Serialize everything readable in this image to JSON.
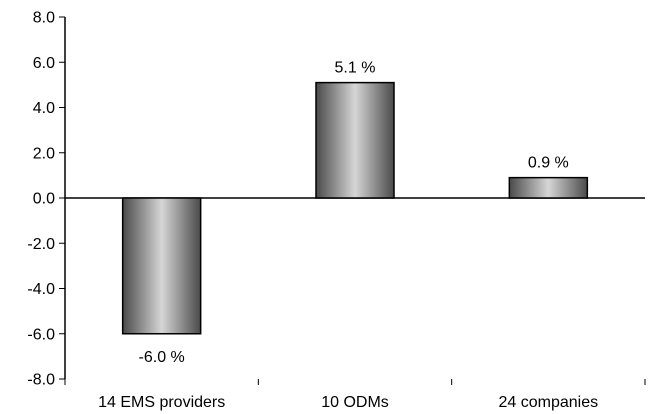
{
  "chart_data": {
    "type": "bar",
    "categories": [
      "14 EMS providers",
      "10 ODMs",
      "24 companies"
    ],
    "values": [
      -6.0,
      5.1,
      0.9
    ],
    "data_labels": [
      "-6.0 %",
      "5.1 %",
      "0.9 %"
    ],
    "title": "",
    "xlabel": "",
    "ylabel": "",
    "ylim": [
      -8.0,
      8.0
    ],
    "y_ticks": [
      8.0,
      6.0,
      4.0,
      2.0,
      0.0,
      -2.0,
      -4.0,
      -6.0,
      -8.0
    ],
    "y_tick_labels": [
      "8.0",
      "6.0",
      "4.0",
      "2.0",
      "0.0",
      "-2.0",
      "-4.0",
      "-6.0",
      "-8.0"
    ],
    "grid": false,
    "legend": "none",
    "colors": {
      "bar_dark": "#4a4a4a",
      "bar_light": "#d6d6d6",
      "bar_stroke": "#000000",
      "axis": "#000000"
    }
  }
}
